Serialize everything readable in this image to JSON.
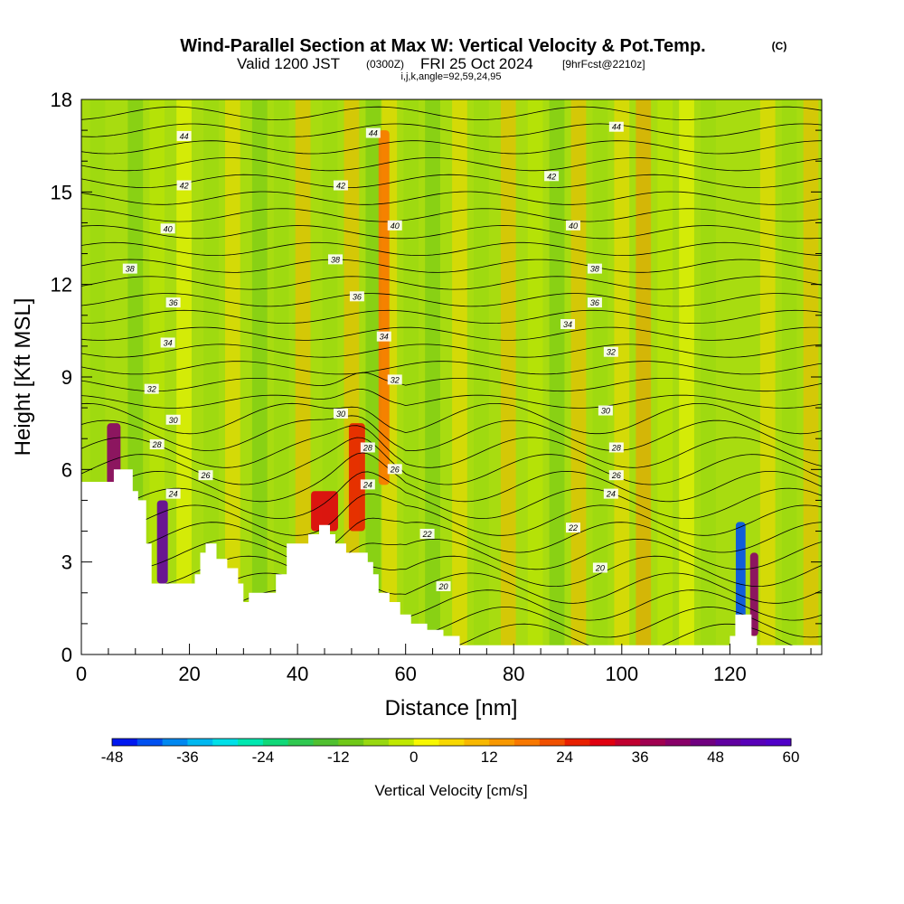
{
  "header": {
    "title": "Wind-Parallel Section at Max W: Vertical Velocity & Pot.Temp.",
    "copyright": "(C)",
    "valid_main": "Valid 1200 JST",
    "valid_utc": "(0300Z)",
    "valid_date": "FRI 25 Oct 2024",
    "forecast": "[9hrFcst@2210z]",
    "indices": "i,j,k,angle=92,59,24,95"
  },
  "chart_data": {
    "type": "heatmap",
    "title": "Wind-Parallel Section at Max W: Vertical Velocity & Pot.Temp.",
    "xlabel": "Distance [nm]",
    "ylabel": "Height [Kft MSL]",
    "xlim": [
      0,
      137
    ],
    "ylim": [
      0,
      18
    ],
    "x_ticks": [
      0,
      20,
      40,
      60,
      80,
      100,
      120
    ],
    "x_tick_labels": [
      "0",
      "20",
      "40",
      "60",
      "80",
      "100",
      "120"
    ],
    "y_ticks": [
      0,
      3,
      6,
      9,
      12,
      15,
      18
    ],
    "y_tick_labels": [
      "0",
      "3",
      "6",
      "9",
      "12",
      "15",
      "18"
    ],
    "colorbar": {
      "title": "Vertical Velocity [cm/s]",
      "min": -48,
      "max": 60,
      "step": 4,
      "tick_values": [
        -48,
        -36,
        -24,
        -12,
        0,
        12,
        24,
        36,
        48,
        60
      ],
      "tick_labels": [
        "-48",
        "-36",
        "-24",
        "-12",
        "0",
        "12",
        "24",
        "36",
        "48",
        "60"
      ],
      "colors": [
        "#0018f0",
        "#0050f0",
        "#0088f0",
        "#00b8f0",
        "#00e0e8",
        "#00e8b0",
        "#10d878",
        "#30c850",
        "#50c030",
        "#70c818",
        "#98d810",
        "#c0e800",
        "#f8f800",
        "#f8d800",
        "#f8b800",
        "#f89800",
        "#f87800",
        "#f05000",
        "#e82000",
        "#e00010",
        "#c00030",
        "#a00050",
        "#880068",
        "#700080",
        "#6000a0",
        "#5800b8",
        "#5000c8"
      ]
    },
    "terrain": [
      [
        0,
        0
      ],
      [
        0,
        5.6
      ],
      [
        1,
        5.6
      ],
      [
        1,
        5.6
      ],
      [
        2.5,
        5.6
      ],
      [
        2.5,
        5.6
      ],
      [
        6,
        5.6
      ],
      [
        6,
        6
      ],
      [
        9.5,
        6
      ],
      [
        9.5,
        5.3
      ],
      [
        10.5,
        5.3
      ],
      [
        10.5,
        5
      ],
      [
        12,
        5
      ],
      [
        12,
        3.6
      ],
      [
        13,
        3.6
      ],
      [
        13,
        2.3
      ],
      [
        21,
        2.3
      ],
      [
        21,
        2.6
      ],
      [
        22,
        2.6
      ],
      [
        22,
        3.3
      ],
      [
        23,
        3.3
      ],
      [
        23,
        3.6
      ],
      [
        25,
        3.6
      ],
      [
        25,
        3.1
      ],
      [
        27,
        3.1
      ],
      [
        27,
        2.8
      ],
      [
        29,
        2.8
      ],
      [
        29,
        2.3
      ],
      [
        30,
        2.3
      ],
      [
        30,
        1.7
      ],
      [
        31,
        1.7
      ],
      [
        31,
        2
      ],
      [
        36,
        2
      ],
      [
        36,
        2.6
      ],
      [
        38,
        2.6
      ],
      [
        38,
        3.6
      ],
      [
        40,
        3.6
      ],
      [
        40,
        3.6
      ],
      [
        42,
        3.6
      ],
      [
        42,
        3.9
      ],
      [
        44,
        3.9
      ],
      [
        44,
        4.2
      ],
      [
        46,
        4.2
      ],
      [
        46,
        3.9
      ],
      [
        47,
        3.9
      ],
      [
        47,
        3.6
      ],
      [
        49,
        3.6
      ],
      [
        49,
        3.3
      ],
      [
        53,
        3.3
      ],
      [
        53,
        3
      ],
      [
        54,
        3
      ],
      [
        54,
        2.6
      ],
      [
        55,
        2.6
      ],
      [
        55,
        2
      ],
      [
        57,
        2
      ],
      [
        57,
        1.7
      ],
      [
        59,
        1.7
      ],
      [
        59,
        1.3
      ],
      [
        61,
        1.3
      ],
      [
        61,
        1
      ],
      [
        64,
        1
      ],
      [
        64,
        0.8
      ],
      [
        67,
        0.8
      ],
      [
        67,
        0.6
      ],
      [
        70,
        0.6
      ],
      [
        70,
        0.3
      ],
      [
        120,
        0.3
      ],
      [
        120,
        0.6
      ],
      [
        121,
        0.6
      ],
      [
        121,
        1.3
      ],
      [
        124,
        1.3
      ],
      [
        124,
        0.6
      ],
      [
        125,
        0.6
      ],
      [
        125,
        0.3
      ],
      [
        137,
        0.3
      ],
      [
        137,
        0
      ]
    ],
    "vertical_velocity_bands": [
      {
        "x": 6,
        "w": 2.5,
        "y0": 5.5,
        "y1": 7.5,
        "value": 40
      },
      {
        "x": 15,
        "w": 2,
        "y0": 2.3,
        "y1": 5,
        "value": 48
      },
      {
        "x": 45,
        "w": 5,
        "y0": 4,
        "y1": 5.3,
        "value": 30
      },
      {
        "x": 51,
        "w": 3,
        "y0": 4,
        "y1": 7.5,
        "value": 24
      },
      {
        "x": 56,
        "w": 2,
        "y0": 5.5,
        "y1": 17,
        "value": 16
      },
      {
        "x": 122,
        "w": 1.8,
        "y0": 0.6,
        "y1": 4.3,
        "value": -44
      },
      {
        "x": 124.5,
        "w": 1.5,
        "y0": 0.6,
        "y1": 3.3,
        "value": 40
      }
    ],
    "theta_contour_labels": [
      {
        "value": "44",
        "x": 19,
        "y": 16.8
      },
      {
        "value": "44",
        "x": 54,
        "y": 16.9
      },
      {
        "value": "44",
        "x": 99,
        "y": 17.1
      },
      {
        "value": "42",
        "x": 19,
        "y": 15.2
      },
      {
        "value": "42",
        "x": 48,
        "y": 15.2
      },
      {
        "value": "42",
        "x": 87,
        "y": 15.5
      },
      {
        "value": "40",
        "x": 16,
        "y": 13.8
      },
      {
        "value": "40",
        "x": 58,
        "y": 13.9
      },
      {
        "value": "40",
        "x": 91,
        "y": 13.9
      },
      {
        "value": "38",
        "x": 9,
        "y": 12.5
      },
      {
        "value": "38",
        "x": 47,
        "y": 12.8
      },
      {
        "value": "38",
        "x": 95,
        "y": 12.5
      },
      {
        "value": "36",
        "x": 17,
        "y": 11.4
      },
      {
        "value": "36",
        "x": 51,
        "y": 11.6
      },
      {
        "value": "36",
        "x": 95,
        "y": 11.4
      },
      {
        "value": "34",
        "x": 16,
        "y": 10.1
      },
      {
        "value": "34",
        "x": 56,
        "y": 10.3
      },
      {
        "value": "34",
        "x": 90,
        "y": 10.7
      },
      {
        "value": "32",
        "x": 13,
        "y": 8.6
      },
      {
        "value": "32",
        "x": 58,
        "y": 8.9
      },
      {
        "value": "32",
        "x": 98,
        "y": 9.8
      },
      {
        "value": "30",
        "x": 17,
        "y": 7.6
      },
      {
        "value": "30",
        "x": 48,
        "y": 7.8
      },
      {
        "value": "30",
        "x": 97,
        "y": 7.9
      },
      {
        "value": "28",
        "x": 14,
        "y": 6.8
      },
      {
        "value": "28",
        "x": 53,
        "y": 6.7
      },
      {
        "value": "28",
        "x": 99,
        "y": 6.7
      },
      {
        "value": "26",
        "x": 23,
        "y": 5.8
      },
      {
        "value": "26",
        "x": 58,
        "y": 6
      },
      {
        "value": "26",
        "x": 99,
        "y": 5.8
      },
      {
        "value": "24",
        "x": 17,
        "y": 5.2
      },
      {
        "value": "24",
        "x": 53,
        "y": 5.5
      },
      {
        "value": "24",
        "x": 98,
        "y": 5.2
      },
      {
        "value": "22",
        "x": 64,
        "y": 3.9
      },
      {
        "value": "22",
        "x": 91,
        "y": 4.1
      },
      {
        "value": "20",
        "x": 67,
        "y": 2.2
      },
      {
        "value": "20",
        "x": 96,
        "y": 2.8
      }
    ]
  }
}
